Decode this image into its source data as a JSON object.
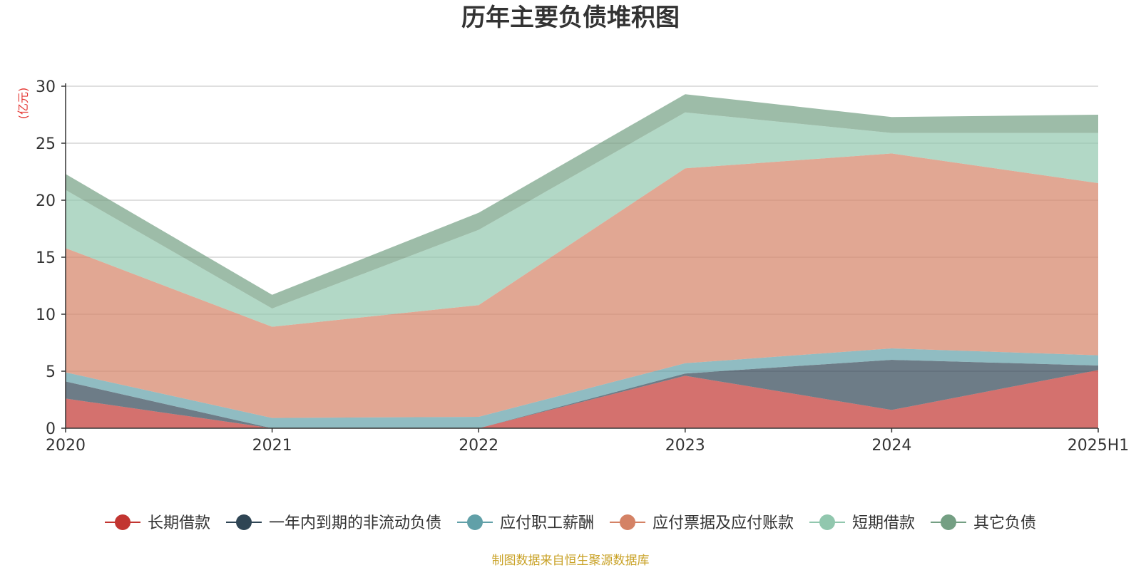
{
  "chart_data": {
    "type": "area",
    "stacked": true,
    "title": "历年主要负债堆积图",
    "unit": "(亿元)",
    "source": "制图数据来自恒生聚源数据库",
    "categories": [
      "2020",
      "2021",
      "2022",
      "2023",
      "2024",
      "2025H1"
    ],
    "ylim": [
      0,
      30
    ],
    "yticks": [
      "0",
      "5",
      "10",
      "15",
      "20",
      "25",
      "30"
    ],
    "grid": true,
    "legend_position": "bottom",
    "series": [
      {
        "name": "长期借款",
        "color": "#c23531",
        "values": [
          2.6,
          0.0,
          0.0,
          4.6,
          1.6,
          5.1
        ]
      },
      {
        "name": "一年内到期的非流动负债",
        "color": "#2f4554",
        "values": [
          1.5,
          0.0,
          0.0,
          0.2,
          4.4,
          0.4
        ]
      },
      {
        "name": "应付职工薪酬",
        "color": "#61a0a8",
        "values": [
          0.8,
          0.9,
          1.0,
          0.9,
          1.0,
          0.9
        ]
      },
      {
        "name": "应付票据及应付账款",
        "color": "#d48265",
        "values": [
          10.9,
          8.0,
          9.8,
          17.1,
          17.1,
          15.1
        ]
      },
      {
        "name": "短期借款",
        "color": "#91c7ae",
        "values": [
          5.1,
          1.6,
          6.6,
          4.9,
          1.8,
          4.4
        ]
      },
      {
        "name": "其它负债",
        "color": "#749f83",
        "values": [
          1.4,
          1.2,
          1.5,
          1.6,
          1.4,
          1.6
        ]
      }
    ]
  }
}
